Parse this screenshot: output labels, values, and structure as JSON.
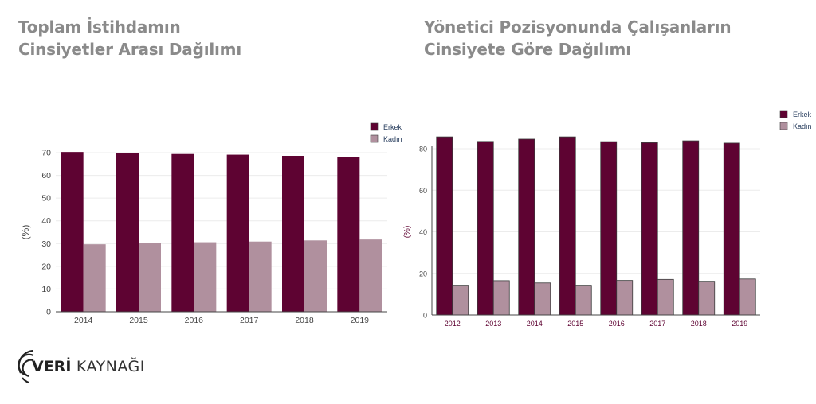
{
  "charts": {
    "left": {
      "title_lines": [
        "Toplam İstihdamın",
        "Cinsiyetler Arası Dağılımı"
      ]
    },
    "right": {
      "title_lines": [
        "Yönetici Pozisyonunda Çalışanların",
        "Cinsiyete Göre Dağılımı"
      ]
    }
  },
  "logo": {
    "brand_bold": "VERİ",
    "brand_light": " KAYNAĞI",
    "icon": "fingerprint-icon"
  },
  "colors": {
    "erkek": "#5e0332",
    "kadin": "#b0909e",
    "title": "#8a8a8a"
  },
  "chart_data": [
    {
      "type": "bar",
      "categories": [
        "2014",
        "2015",
        "2016",
        "2017",
        "2018",
        "2019"
      ],
      "series": [
        {
          "name": "Erkek",
          "values": [
            70.3,
            69.7,
            69.4,
            69.1,
            68.6,
            68.2
          ]
        },
        {
          "name": "Kadın",
          "values": [
            29.7,
            30.3,
            30.6,
            30.9,
            31.4,
            31.8
          ]
        }
      ],
      "ylabel": "(%)",
      "ylim": [
        0,
        70
      ],
      "yticks": [
        0,
        10,
        20,
        30,
        40,
        50,
        60,
        70
      ],
      "legend": "top-right",
      "grid": true
    },
    {
      "type": "bar",
      "categories": [
        "2012",
        "2013",
        "2014",
        "2015",
        "2016",
        "2017",
        "2018",
        "2019"
      ],
      "series": [
        {
          "name": "Erkek",
          "values": [
            85.7,
            83.5,
            84.6,
            85.7,
            83.4,
            82.9,
            83.8,
            82.7
          ]
        },
        {
          "name": "Kadın",
          "values": [
            14.3,
            16.5,
            15.4,
            14.3,
            16.6,
            17.1,
            16.2,
            17.3
          ]
        }
      ],
      "ylabel": "(%)",
      "ylim": [
        0,
        80
      ],
      "yticks": [
        0,
        20,
        40,
        60,
        80
      ],
      "legend": "top-right",
      "grid": true
    }
  ]
}
